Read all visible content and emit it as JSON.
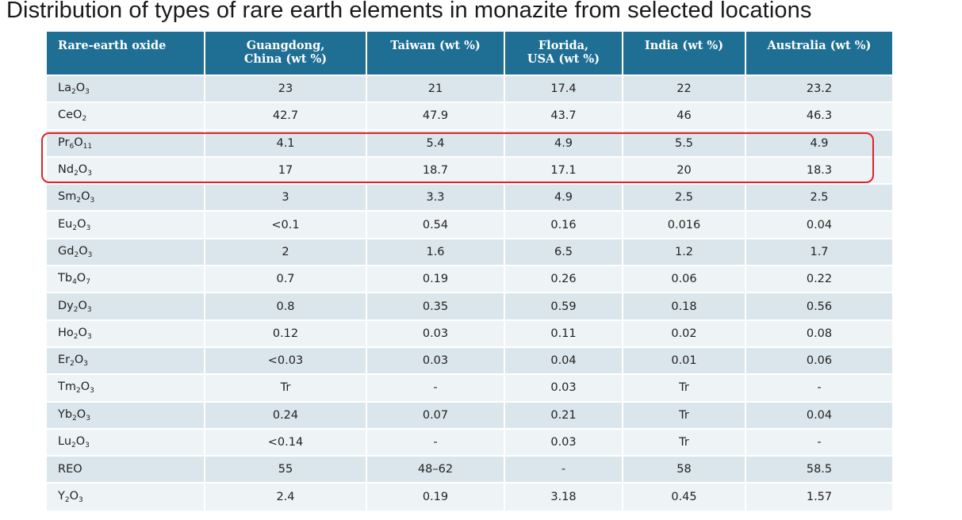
{
  "title": "Distribution of types of rare earth elements in monazite from selected locations",
  "table": {
    "headers": [
      [
        "Rare-earth oxide"
      ],
      [
        "Guangdong,",
        "China (wt %)"
      ],
      [
        "Taiwan (wt %)"
      ],
      [
        "Florida,",
        "USA (wt %)"
      ],
      [
        "India (wt %)"
      ],
      [
        "Australia  (wt %)"
      ]
    ],
    "rows": [
      {
        "oxide": [
          [
            "La",
            "2"
          ],
          [
            "O",
            "3"
          ]
        ],
        "values": [
          "23",
          "21",
          "17.4",
          "22",
          "23.2"
        ]
      },
      {
        "oxide": [
          [
            "CeO",
            "2"
          ]
        ],
        "values": [
          "42.7",
          "47.9",
          "43.7",
          "46",
          "46.3"
        ]
      },
      {
        "oxide": [
          [
            "Pr",
            "6"
          ],
          [
            "O",
            "11"
          ]
        ],
        "values": [
          "4.1",
          "5.4",
          "4.9",
          "5.5",
          "4.9"
        ]
      },
      {
        "oxide": [
          [
            "Nd",
            "2"
          ],
          [
            "O",
            "3"
          ]
        ],
        "values": [
          "17",
          "18.7",
          "17.1",
          "20",
          "18.3"
        ]
      },
      {
        "oxide": [
          [
            "Sm",
            "2"
          ],
          [
            "O",
            "3"
          ]
        ],
        "values": [
          "3",
          "3.3",
          "4.9",
          "2.5",
          "2.5"
        ]
      },
      {
        "oxide": [
          [
            "Eu",
            "2"
          ],
          [
            "O",
            "3"
          ]
        ],
        "values": [
          "<0.1",
          "0.54",
          "0.16",
          "0.016",
          "0.04"
        ]
      },
      {
        "oxide": [
          [
            "Gd",
            "2"
          ],
          [
            "O",
            "3"
          ]
        ],
        "values": [
          "2",
          "1.6",
          "6.5",
          "1.2",
          "1.7"
        ]
      },
      {
        "oxide": [
          [
            "Tb",
            "4"
          ],
          [
            "O",
            "7"
          ]
        ],
        "values": [
          "0.7",
          "0.19",
          "0.26",
          "0.06",
          "0.22"
        ]
      },
      {
        "oxide": [
          [
            "Dy",
            "2"
          ],
          [
            "O",
            "3"
          ]
        ],
        "values": [
          "0.8",
          "0.35",
          "0.59",
          "0.18",
          "0.56"
        ]
      },
      {
        "oxide": [
          [
            "Ho",
            "2"
          ],
          [
            "O",
            "3"
          ]
        ],
        "values": [
          "0.12",
          "0.03",
          "0.11",
          "0.02",
          "0.08"
        ]
      },
      {
        "oxide": [
          [
            "Er",
            "2"
          ],
          [
            "O",
            "3"
          ]
        ],
        "values": [
          "<0.03",
          "0.03",
          "0.04",
          "0.01",
          "0.06"
        ]
      },
      {
        "oxide": [
          [
            "Tm",
            "2"
          ],
          [
            "O",
            "3"
          ]
        ],
        "values": [
          "Tr",
          "-",
          "0.03",
          "Tr",
          "-"
        ]
      },
      {
        "oxide": [
          [
            "Yb",
            "2"
          ],
          [
            "O",
            "3"
          ]
        ],
        "values": [
          "0.24",
          "0.07",
          "0.21",
          "Tr",
          "0.04"
        ]
      },
      {
        "oxide": [
          [
            "Lu",
            "2"
          ],
          [
            "O",
            "3"
          ]
        ],
        "values": [
          "<0.14",
          "-",
          "0.03",
          "Tr",
          "-"
        ]
      },
      {
        "oxide": [
          [
            "REO",
            ""
          ]
        ],
        "values": [
          "55",
          "48–62",
          "-",
          "58",
          "58.5"
        ]
      },
      {
        "oxide": [
          [
            "Y",
            "2"
          ],
          [
            "O",
            "3"
          ]
        ],
        "values": [
          "2.4",
          "0.19",
          "3.18",
          "0.45",
          "1.57"
        ]
      }
    ]
  },
  "colors": {
    "header_bg": "#1f6f95",
    "row_odd": "#dbe6ec",
    "row_even": "#eef3f6",
    "highlight": "#e0232b"
  }
}
